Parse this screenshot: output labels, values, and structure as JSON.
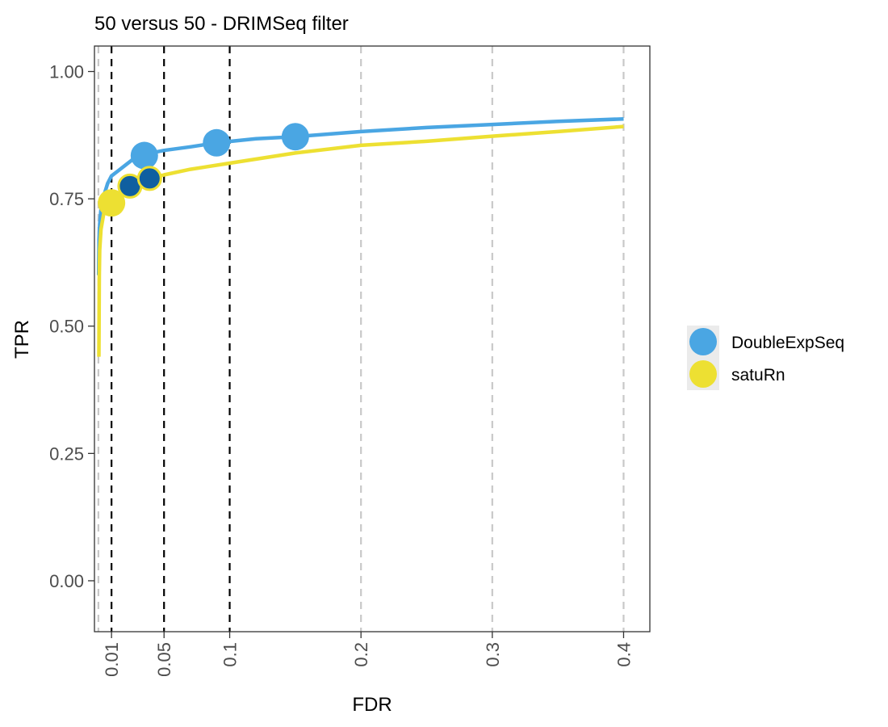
{
  "chart_data": {
    "type": "line",
    "title": "50 versus 50 - DRIMSeq filter",
    "xlabel": "FDR",
    "ylabel": "TPR",
    "xlim": [
      -0.003,
      0.42
    ],
    "ylim": [
      -0.1,
      1.05
    ],
    "x_ticks": [
      {
        "value": 0.01,
        "label": "0.01"
      },
      {
        "value": 0.05,
        "label": "0.05"
      },
      {
        "value": 0.1,
        "label": "0.1"
      },
      {
        "value": 0.2,
        "label": "0.2"
      },
      {
        "value": 0.3,
        "label": "0.3"
      },
      {
        "value": 0.4,
        "label": "0.4"
      }
    ],
    "y_ticks": [
      {
        "value": 0.0,
        "label": "0.00"
      },
      {
        "value": 0.25,
        "label": "0.25"
      },
      {
        "value": 0.5,
        "label": "0.50"
      },
      {
        "value": 0.75,
        "label": "0.75"
      },
      {
        "value": 1.0,
        "label": "1.00"
      }
    ],
    "grid_major_x": [
      0,
      0.2,
      0.3,
      0.4
    ],
    "fdr_thresholds": [
      0.01,
      0.05,
      0.1
    ],
    "legend_position": "right",
    "series": [
      {
        "name": "DoubleExpSeq",
        "color": "#4aa6e3",
        "curve": [
          [
            0.0002,
            0.6
          ],
          [
            0.0005,
            0.67
          ],
          [
            0.001,
            0.7
          ],
          [
            0.002,
            0.73
          ],
          [
            0.004,
            0.755
          ],
          [
            0.007,
            0.78
          ],
          [
            0.01,
            0.795
          ],
          [
            0.015,
            0.805
          ],
          [
            0.02,
            0.815
          ],
          [
            0.03,
            0.835
          ],
          [
            0.04,
            0.84
          ],
          [
            0.05,
            0.845
          ],
          [
            0.07,
            0.852
          ],
          [
            0.09,
            0.86
          ],
          [
            0.12,
            0.868
          ],
          [
            0.15,
            0.872
          ],
          [
            0.2,
            0.882
          ],
          [
            0.25,
            0.89
          ],
          [
            0.3,
            0.896
          ],
          [
            0.35,
            0.902
          ],
          [
            0.4,
            0.907
          ]
        ],
        "points": [
          {
            "x": 0.035,
            "y": 0.835,
            "threshold": 0.05,
            "significant": false
          },
          {
            "x": 0.09,
            "y": 0.86,
            "threshold": 0.1,
            "significant": false
          },
          {
            "x": 0.15,
            "y": 0.872,
            "threshold": 0.1,
            "significant": false
          }
        ]
      },
      {
        "name": "satuRn",
        "color": "#ede032",
        "curve": [
          [
            0.0004,
            0.44
          ],
          [
            0.0007,
            0.6
          ],
          [
            0.001,
            0.65
          ],
          [
            0.002,
            0.69
          ],
          [
            0.004,
            0.72
          ],
          [
            0.007,
            0.735
          ],
          [
            0.01,
            0.742
          ],
          [
            0.015,
            0.755
          ],
          [
            0.02,
            0.768
          ],
          [
            0.025,
            0.775
          ],
          [
            0.04,
            0.79
          ],
          [
            0.05,
            0.797
          ],
          [
            0.07,
            0.808
          ],
          [
            0.1,
            0.82
          ],
          [
            0.15,
            0.84
          ],
          [
            0.2,
            0.855
          ],
          [
            0.25,
            0.863
          ],
          [
            0.3,
            0.873
          ],
          [
            0.35,
            0.882
          ],
          [
            0.4,
            0.892
          ]
        ],
        "points": [
          {
            "x": 0.01,
            "y": 0.742,
            "threshold": 0.01,
            "significant": false
          },
          {
            "x": 0.024,
            "y": 0.775,
            "threshold": 0.05,
            "significant": true
          },
          {
            "x": 0.039,
            "y": 0.79,
            "threshold": 0.05,
            "significant": true
          }
        ]
      }
    ],
    "significant_point_color": "#0f5fa0"
  }
}
